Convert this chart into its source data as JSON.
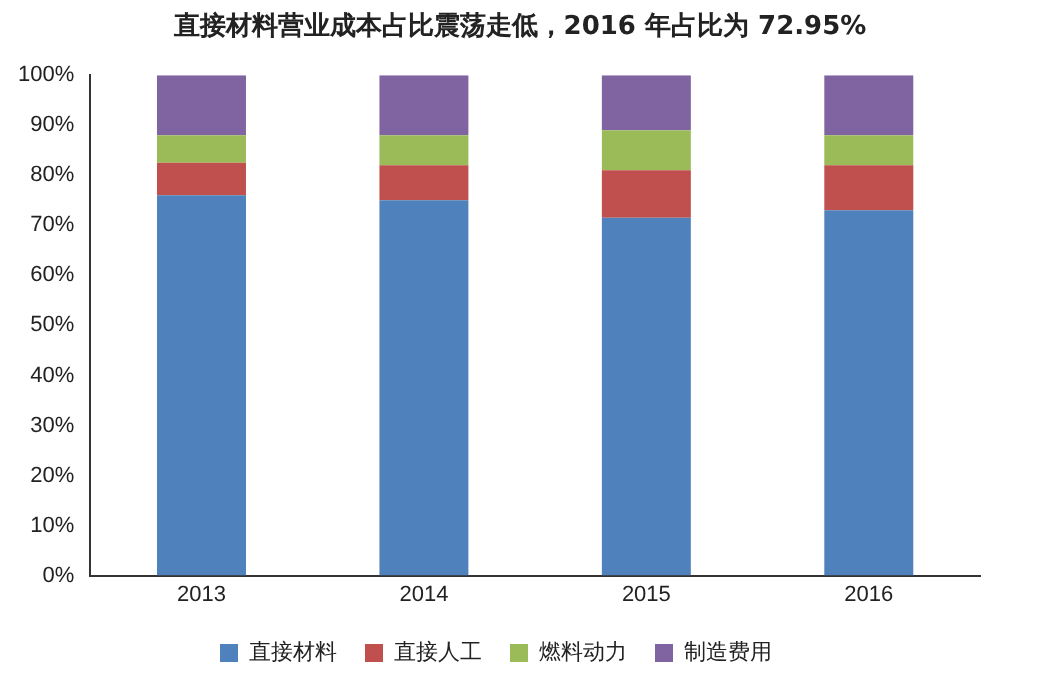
{
  "chart_data": {
    "type": "bar",
    "title": "直接材料营业成本占比震荡走低，2016 年占比为 72.95%",
    "categories": [
      "2013",
      "2014",
      "2015",
      "2016"
    ],
    "stacked": true,
    "series": [
      {
        "name": "直接材料",
        "color": "#4f81bd",
        "values": [
          76,
          75,
          71.5,
          73
        ]
      },
      {
        "name": "直接人工",
        "color": "#c0504d",
        "values": [
          6.5,
          7,
          9.5,
          9
        ]
      },
      {
        "name": "燃料动力",
        "color": "#9bbb59",
        "values": [
          5.5,
          6,
          8,
          6
        ]
      },
      {
        "name": "制造费用",
        "color": "#8064a2",
        "values": [
          12,
          12,
          11,
          12
        ]
      }
    ],
    "ylim": [
      0,
      100
    ],
    "yticks": [
      {
        "value": 0,
        "label": "0%"
      },
      {
        "value": 10,
        "label": "10%"
      },
      {
        "value": 20,
        "label": "20%"
      },
      {
        "value": 30,
        "label": "30%"
      },
      {
        "value": 40,
        "label": "40%"
      },
      {
        "value": 50,
        "label": "50%"
      },
      {
        "value": 60,
        "label": "60%"
      },
      {
        "value": 70,
        "label": "70%"
      },
      {
        "value": 80,
        "label": "80%"
      },
      {
        "value": 90,
        "label": "90%"
      },
      {
        "value": 100,
        "label": "100%"
      }
    ],
    "grid": false,
    "legend": "bottom"
  }
}
